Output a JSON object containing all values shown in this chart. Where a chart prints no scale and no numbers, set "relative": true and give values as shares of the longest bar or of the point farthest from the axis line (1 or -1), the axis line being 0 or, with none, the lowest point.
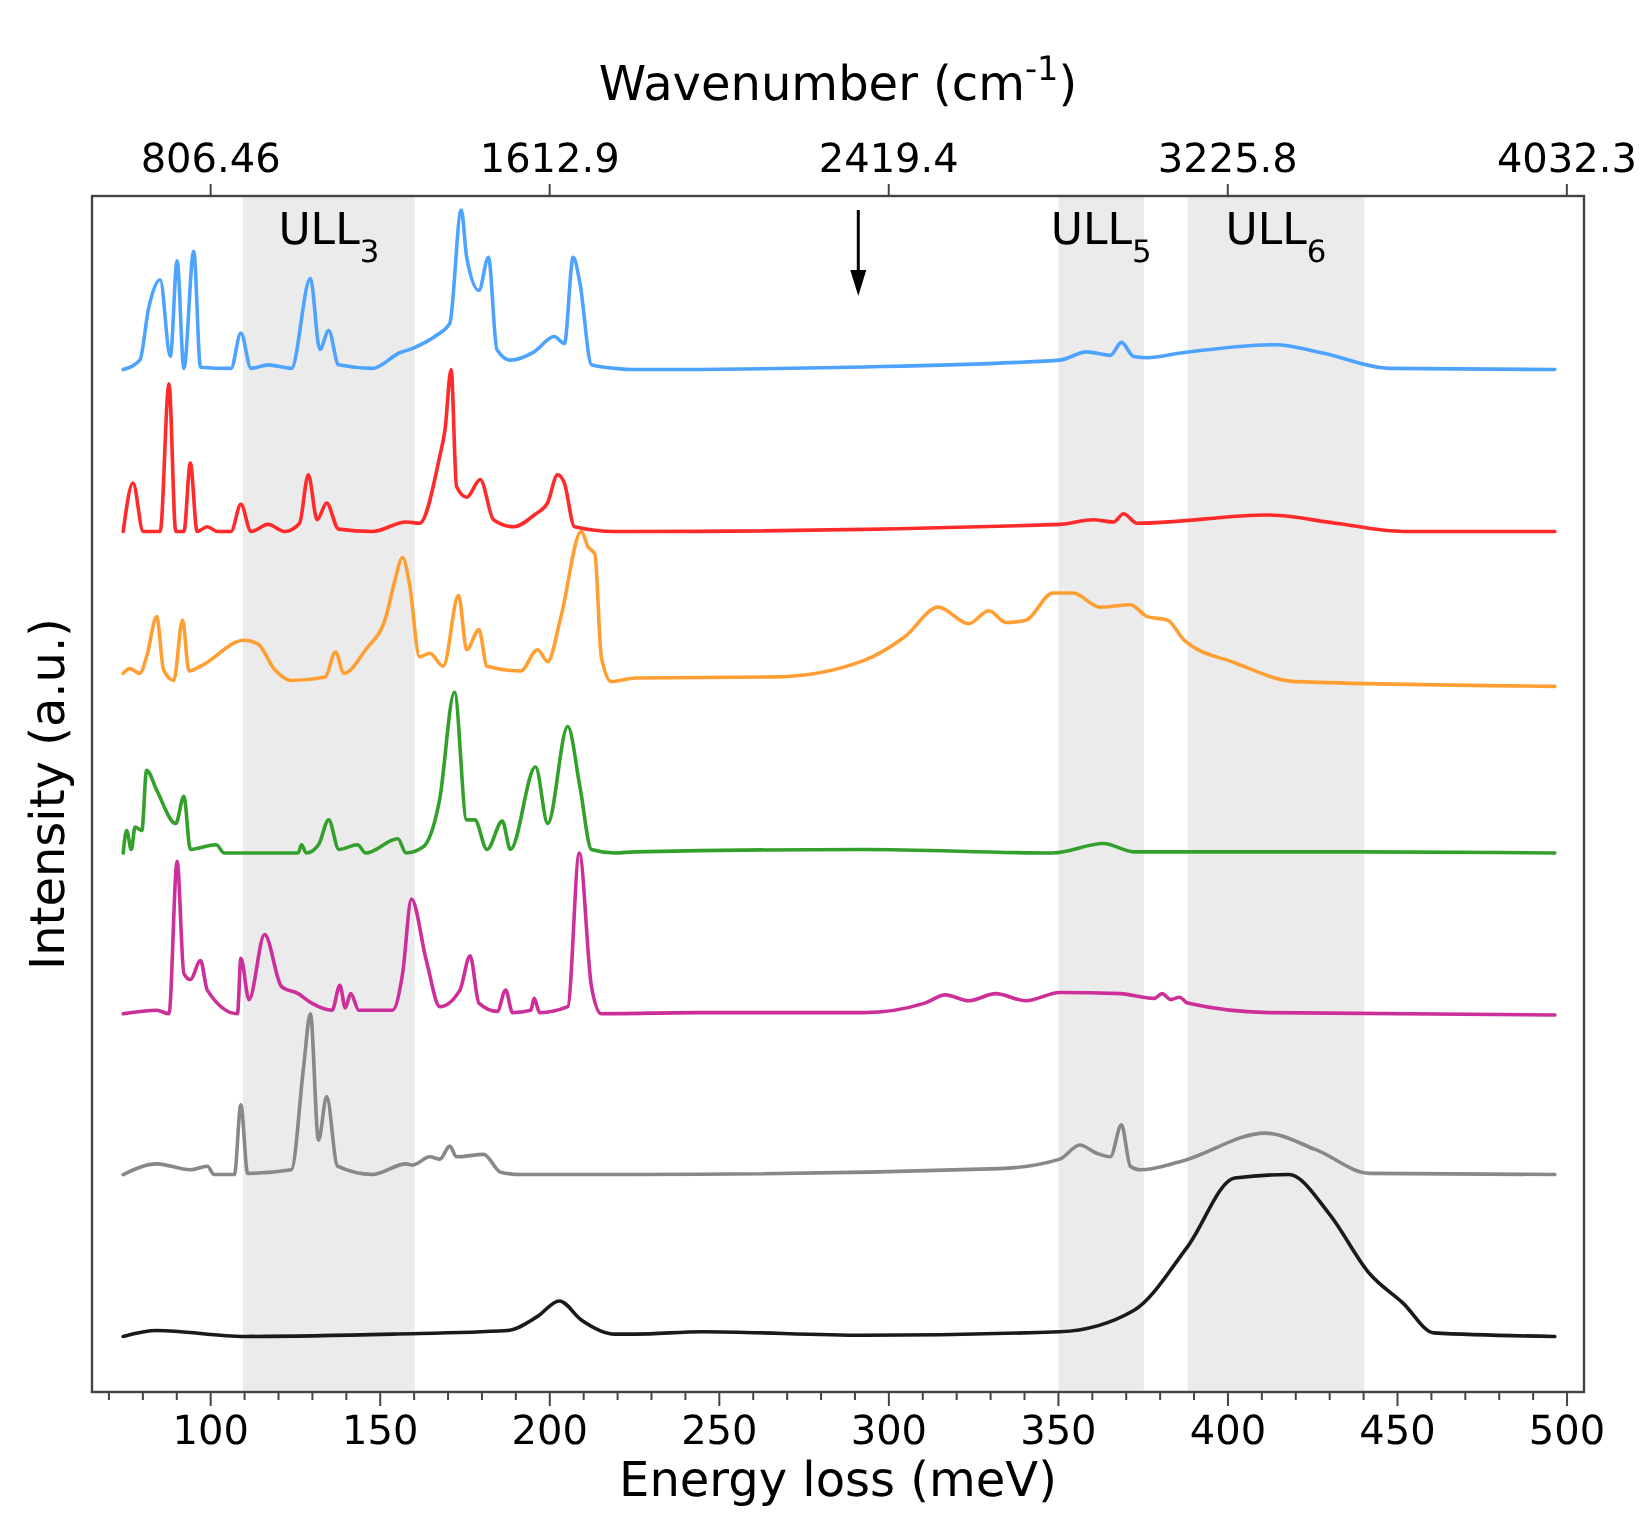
{
  "chart_data": {
    "type": "line",
    "relative": true,
    "xlabel": "Energy loss (meV)",
    "ylabel": "Intensity (a.u.)",
    "x2label": "Wavenumber (cm$^{-1}$)",
    "xlim": [
      65,
      505
    ],
    "xticks": [
      {
        "value": 70,
        "label": null
      },
      {
        "value": 80,
        "label": null
      },
      {
        "value": 90,
        "label": null
      },
      100,
      {
        "value": 110,
        "label": null
      },
      {
        "value": 120,
        "label": null
      },
      {
        "value": 130,
        "label": null
      },
      {
        "value": 140,
        "label": null
      },
      150,
      {
        "value": 160,
        "label": null
      },
      {
        "value": 170,
        "label": null
      },
      {
        "value": 180,
        "label": null
      },
      {
        "value": 190,
        "label": null
      },
      200,
      {
        "value": 210,
        "label": null
      },
      {
        "value": 220,
        "label": null
      },
      {
        "value": 230,
        "label": null
      },
      {
        "value": 240,
        "label": null
      },
      250,
      {
        "value": 260,
        "label": null
      },
      {
        "value": 270,
        "label": null
      },
      {
        "value": 280,
        "label": null
      },
      {
        "value": 290,
        "label": null
      },
      300,
      {
        "value": 310,
        "label": null
      },
      {
        "value": 320,
        "label": null
      },
      {
        "value": 330,
        "label": null
      },
      {
        "value": 340,
        "label": null
      },
      350,
      {
        "value": 360,
        "label": null
      },
      {
        "value": 370,
        "label": null
      },
      {
        "value": 380,
        "label": null
      },
      {
        "value": 390,
        "label": null
      },
      400,
      {
        "value": 410,
        "label": null
      },
      {
        "value": 420,
        "label": null
      },
      {
        "value": 430,
        "label": null
      },
      {
        "value": 440,
        "label": null
      },
      450,
      {
        "value": 460,
        "label": null
      },
      {
        "value": 470,
        "label": null
      },
      {
        "value": 480,
        "label": null
      },
      {
        "value": 490,
        "label": null
      },
      500
    ],
    "x2lim": [
      524.3,
      4073.1
    ],
    "x2ticks": [
      806.46,
      1612.9,
      2419.4,
      3225.8,
      4032.3
    ],
    "bands": [
      {
        "axis": "x",
        "from": 109.5,
        "to": 160.2,
        "label": "ULL$_{3}$",
        "color": "#ebebeb"
      },
      {
        "axis": "x",
        "from": 350,
        "to": 375.2,
        "label": "ULL$_{5}$",
        "color": "#ebebeb"
      },
      {
        "axis": "x",
        "from": 388.1,
        "to": 440.2,
        "label": "ULL$_{6}$",
        "color": "#ebebeb"
      }
    ],
    "series": [
      {
        "color": "#4da3ff",
        "x": [
          74.2,
          79.1,
          81.7,
          85.1,
          88.1,
          90.1,
          92.1,
          95.0,
          97.0,
          106.0,
          108.9,
          111.9,
          116.9,
          123.8,
          129.4,
          132.2,
          134.8,
          137.7,
          147.7,
          155.6,
          159.6,
          166.6,
          170.5,
          173.9,
          175.5,
          179.1,
          181.9,
          184.4,
          188.4,
          195.4,
          201.3,
          204.3,
          206.9,
          208.9,
          212.3,
          219.2,
          225.2,
          288.8,
          350.4,
          358.3,
          365.3,
          368.6,
          372.2,
          376.2,
          386.1,
          414.0,
          427.9,
          447.7,
          496.4
        ],
        "values": [
          0.865,
          0.873,
          0.917,
          0.941,
          0.876,
          0.957,
          0.866,
          0.965,
          0.867,
          0.866,
          0.896,
          0.866,
          0.869,
          0.866,
          0.942,
          0.882,
          0.898,
          0.869,
          0.866,
          0.879,
          0.883,
          0.894,
          0.904,
          1.0,
          0.96,
          0.932,
          0.96,
          0.882,
          0.873,
          0.88,
          0.893,
          0.887,
          0.96,
          0.938,
          0.869,
          0.866,
          0.865,
          0.867,
          0.873,
          0.88,
          0.877,
          0.888,
          0.876,
          0.875,
          0.879,
          0.886,
          0.879,
          0.866,
          0.865
        ]
      },
      {
        "color": "#ff2a2a",
        "x": [
          74.2,
          77.1,
          80.1,
          85.1,
          87.7,
          89.7,
          92.1,
          94.0,
          96.0,
          99.0,
          102.0,
          106.0,
          108.9,
          111.9,
          116.9,
          121.9,
          126.2,
          128.8,
          131.4,
          134.2,
          137.7,
          147.7,
          157.6,
          161.6,
          167.5,
          169.1,
          170.9,
          172.5,
          175.5,
          179.5,
          183.4,
          189.4,
          195.4,
          199.3,
          202.3,
          204.3,
          207.3,
          219.2,
          225.2,
          350.4,
          360.3,
          366.3,
          369.2,
          373.2,
          412.0,
          431.8,
          451.7,
          496.4
        ],
        "values": [
          0.728,
          0.769,
          0.728,
          0.728,
          0.853,
          0.728,
          0.728,
          0.786,
          0.728,
          0.732,
          0.728,
          0.728,
          0.751,
          0.728,
          0.734,
          0.728,
          0.735,
          0.776,
          0.738,
          0.752,
          0.73,
          0.728,
          0.736,
          0.735,
          0.791,
          0.814,
          0.865,
          0.766,
          0.757,
          0.772,
          0.738,
          0.732,
          0.742,
          0.752,
          0.776,
          0.769,
          0.732,
          0.728,
          0.728,
          0.734,
          0.738,
          0.736,
          0.743,
          0.735,
          0.742,
          0.735,
          0.728,
          0.728
        ]
      },
      {
        "color": "#ff9f33",
        "x": [
          74.2,
          76.2,
          79.1,
          81.1,
          84.1,
          86.1,
          89.1,
          91.7,
          93.6,
          97.0,
          109.9,
          113.9,
          118.9,
          123.8,
          133.8,
          136.8,
          139.3,
          145.7,
          151.7,
          154.1,
          156.6,
          158.6,
          161.6,
          164.6,
          168.6,
          173.1,
          175.5,
          179.1,
          181.5,
          191.4,
          196.4,
          199.4,
          203.3,
          209.3,
          211.3,
          213.3,
          215.2,
          218.2,
          225.2,
          266.9,
          292.7,
          304.7,
          314.6,
          323.5,
          329.5,
          334.5,
          340.4,
          348.4,
          354.3,
          362.3,
          371.2,
          376.2,
          382.2,
          387.1,
          402.0,
          419.9,
          496.4
        ],
        "values": [
          0.608,
          0.612,
          0.608,
          0.622,
          0.656,
          0.611,
          0.602,
          0.653,
          0.61,
          0.614,
          0.636,
          0.633,
          0.611,
          0.602,
          0.605,
          0.626,
          0.608,
          0.628,
          0.656,
          0.684,
          0.706,
          0.684,
          0.622,
          0.625,
          0.614,
          0.674,
          0.628,
          0.645,
          0.614,
          0.61,
          0.628,
          0.618,
          0.656,
          0.728,
          0.715,
          0.709,
          0.622,
          0.601,
          0.604,
          0.605,
          0.619,
          0.639,
          0.664,
          0.65,
          0.661,
          0.651,
          0.653,
          0.676,
          0.676,
          0.664,
          0.666,
          0.656,
          0.653,
          0.636,
          0.617,
          0.601,
          0.597
        ]
      },
      {
        "color": "#33a02c",
        "x": [
          74.2,
          75.2,
          76.6,
          77.7,
          79.7,
          81.1,
          84.1,
          89.7,
          92.1,
          94.0,
          101.6,
          104.0,
          125.8,
          126.8,
          128.2,
          131.8,
          134.8,
          137.8,
          143.3,
          145.7,
          155.2,
          157.6,
          162.6,
          167.5,
          171.9,
          175.5,
          177.9,
          181.5,
          186.0,
          188.4,
          195.8,
          199.4,
          205.3,
          208.9,
          212.3,
          219.2,
          225.2,
          292.7,
          348.4,
          363.3,
          372.2,
          439.8,
          496.4
        ],
        "values": [
          0.456,
          0.475,
          0.459,
          0.478,
          0.475,
          0.526,
          0.509,
          0.481,
          0.504,
          0.459,
          0.463,
          0.456,
          0.456,
          0.463,
          0.456,
          0.463,
          0.484,
          0.459,
          0.463,
          0.456,
          0.468,
          0.456,
          0.461,
          0.501,
          0.592,
          0.484,
          0.484,
          0.459,
          0.483,
          0.459,
          0.529,
          0.481,
          0.563,
          0.512,
          0.459,
          0.456,
          0.457,
          0.459,
          0.456,
          0.464,
          0.457,
          0.457,
          0.456
        ]
      },
      {
        "color": "#cc2e9a",
        "x": [
          74.2,
          84.1,
          87.7,
          90.1,
          92.1,
          94.0,
          97.0,
          99.0,
          107.9,
          108.9,
          111.3,
          115.9,
          120.9,
          125.8,
          129.8,
          135.8,
          138.1,
          139.7,
          141.3,
          143.7,
          153.6,
          156.6,
          159.2,
          163.6,
          167.6,
          173.5,
          176.5,
          179.1,
          184.5,
          187.0,
          189.0,
          194.4,
          195.4,
          197.0,
          205.3,
          208.7,
          212.3,
          215.2,
          243.1,
          292.7,
          310.6,
          316.6,
          323.5,
          331.5,
          340.4,
          350.4,
          368.3,
          378.2,
          380.6,
          383.1,
          385.7,
          388.1,
          411.9,
          496.4
        ],
        "values": [
          0.32,
          0.323,
          0.32,
          0.449,
          0.354,
          0.349,
          0.365,
          0.34,
          0.32,
          0.367,
          0.332,
          0.387,
          0.343,
          0.337,
          0.329,
          0.323,
          0.344,
          0.325,
          0.337,
          0.323,
          0.323,
          0.354,
          0.417,
          0.365,
          0.326,
          0.34,
          0.369,
          0.329,
          0.322,
          0.34,
          0.321,
          0.323,
          0.333,
          0.321,
          0.326,
          0.456,
          0.343,
          0.32,
          0.321,
          0.321,
          0.329,
          0.336,
          0.331,
          0.337,
          0.331,
          0.338,
          0.337,
          0.333,
          0.337,
          0.332,
          0.334,
          0.329,
          0.321,
          0.319
        ]
      },
      {
        "color": "#888888",
        "x": [
          74.2,
          84.1,
          94.0,
          99.0,
          101.0,
          107.0,
          108.9,
          110.9,
          123.8,
          127.4,
          129.4,
          131.8,
          134.2,
          137.4,
          147.7,
          157.6,
          159.6,
          164.6,
          167.6,
          170.5,
          172.5,
          180.5,
          185.5,
          191.4,
          219.2,
          225.2,
          332.5,
          350.4,
          356.3,
          361.3,
          365.3,
          368.6,
          371.2,
          374.2,
          386.1,
          411.0,
          425.9,
          441.8,
          496.4
        ],
        "values": [
          0.184,
          0.193,
          0.188,
          0.191,
          0.184,
          0.184,
          0.243,
          0.185,
          0.188,
          0.275,
          0.32,
          0.213,
          0.25,
          0.191,
          0.184,
          0.193,
          0.192,
          0.199,
          0.197,
          0.208,
          0.199,
          0.201,
          0.186,
          0.184,
          0.184,
          0.184,
          0.189,
          0.197,
          0.209,
          0.202,
          0.199,
          0.226,
          0.191,
          0.188,
          0.195,
          0.219,
          0.205,
          0.185,
          0.184
        ]
      },
      {
        "color": "#1a1a1a",
        "x": [
          74.2,
          84.1,
          109.9,
          153.6,
          187.5,
          196.4,
          202.8,
          209.3,
          219.2,
          225.2,
          245.1,
          292.7,
          350.4,
          372.2,
          388.1,
          402.0,
          417.9,
          429.8,
          441.8,
          451.7,
          460.7,
          496.4
        ],
        "values": [
          0.047,
          0.052,
          0.047,
          0.049,
          0.052,
          0.064,
          0.077,
          0.061,
          0.049,
          0.049,
          0.051,
          0.048,
          0.051,
          0.069,
          0.123,
          0.181,
          0.184,
          0.151,
          0.1,
          0.075,
          0.05,
          0.047
        ]
      }
    ]
  }
}
